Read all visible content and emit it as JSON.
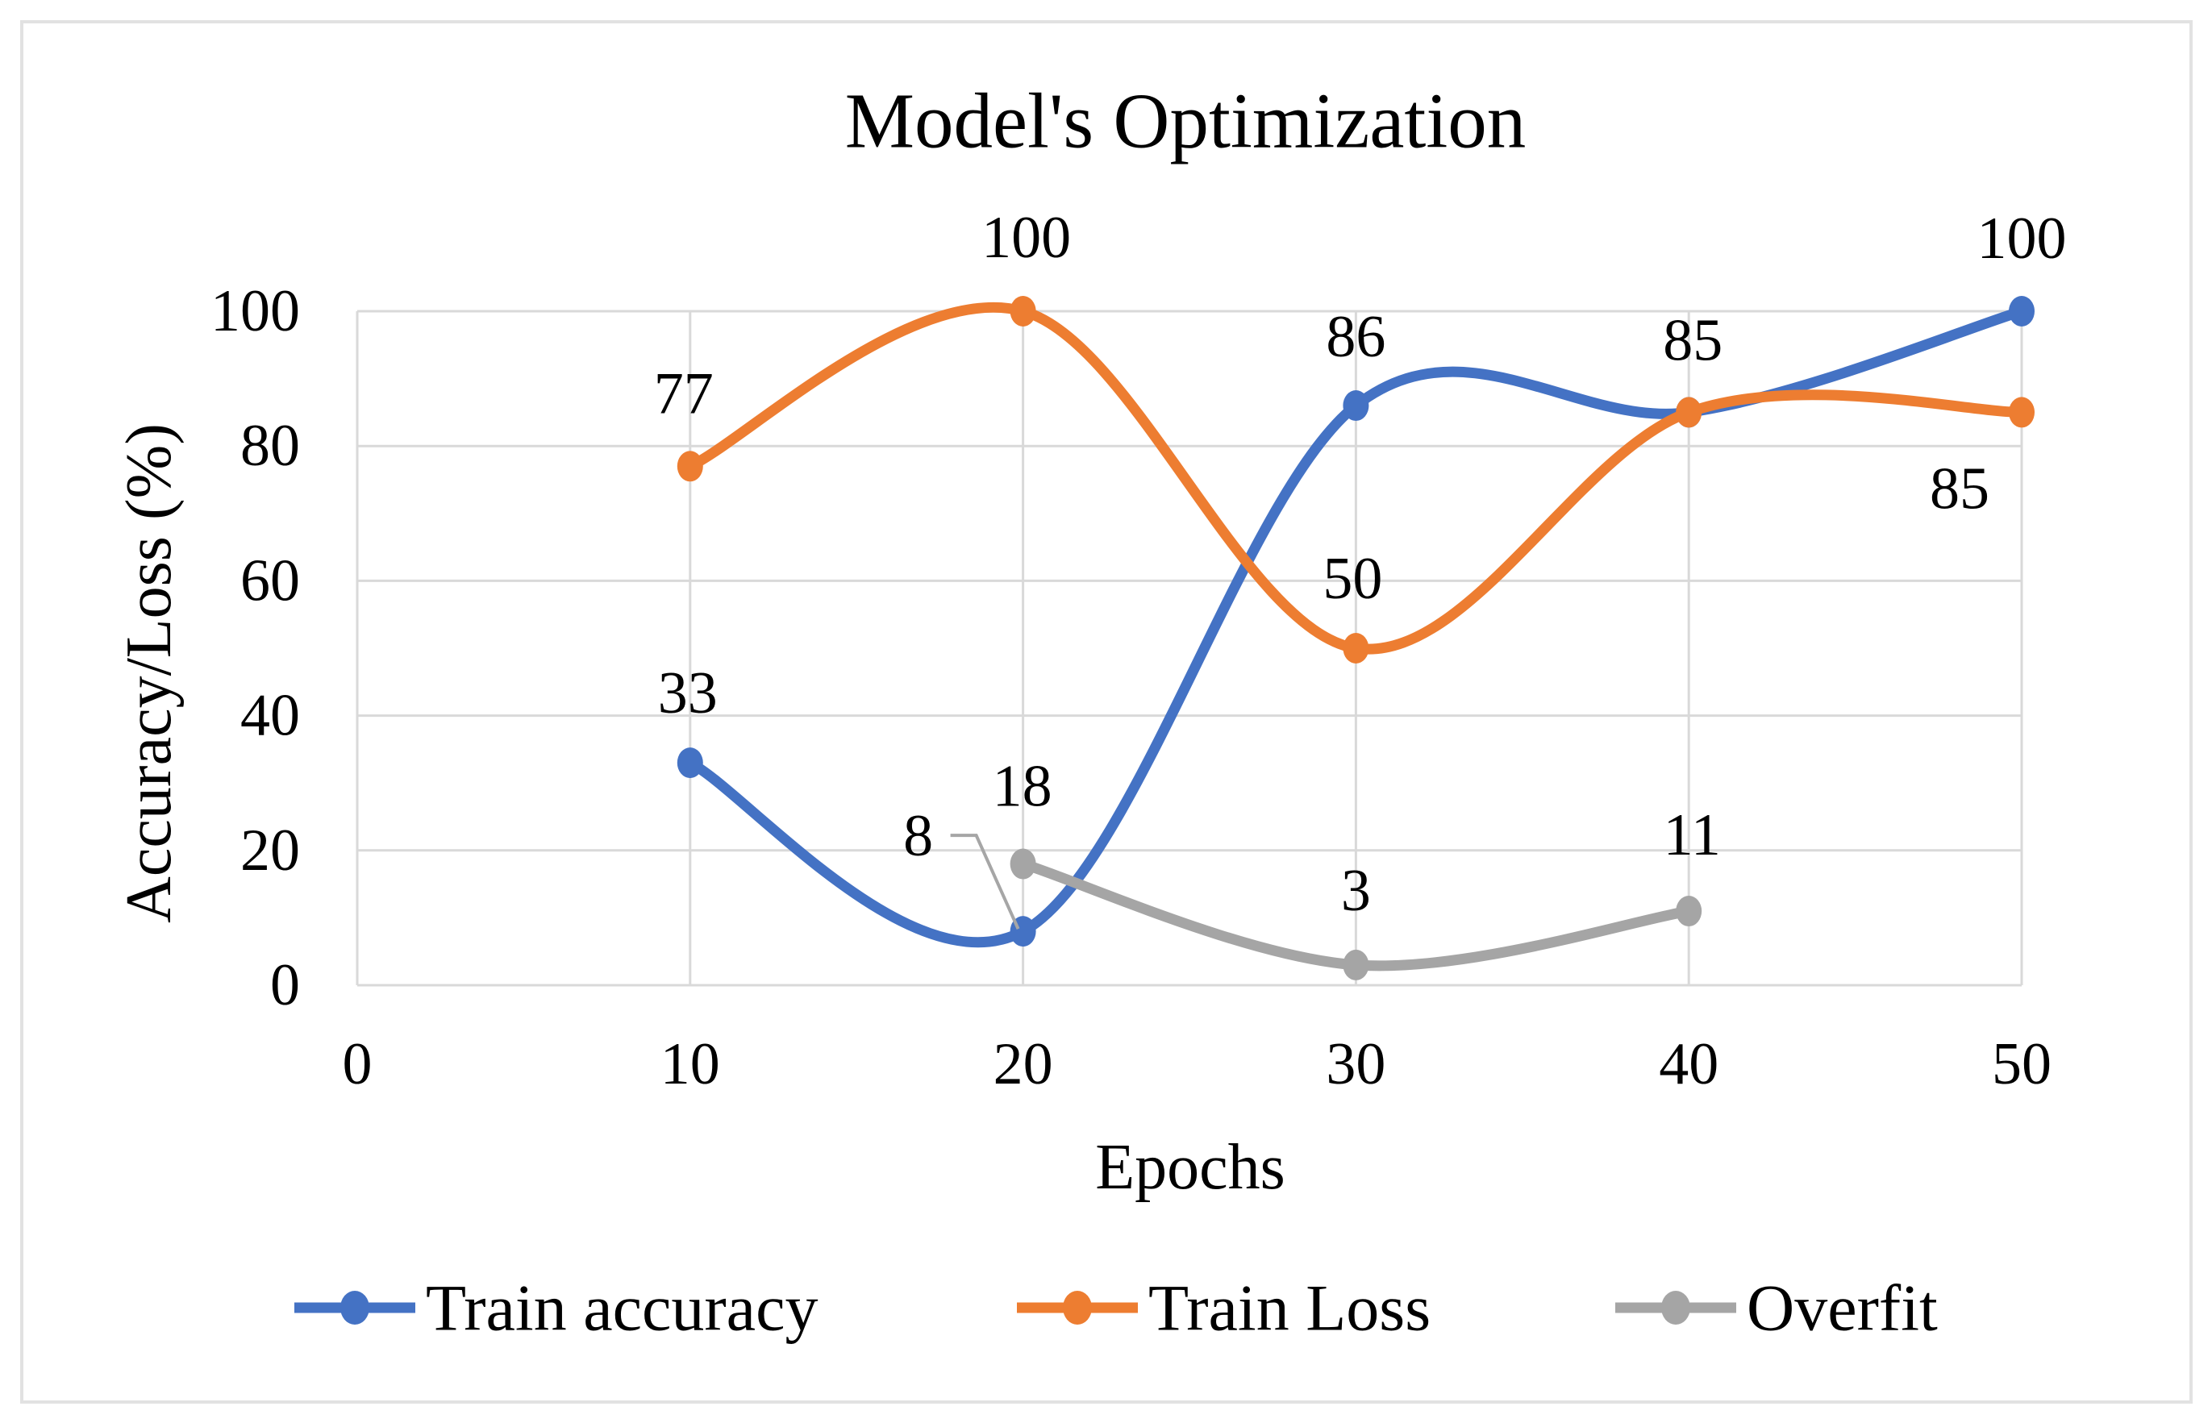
{
  "chart_data": {
    "type": "line",
    "title": "Model's Optimization",
    "xlabel": "Epochs",
    "ylabel": "Accuracy/Loss (%)",
    "x_ticks": [
      0,
      10,
      20,
      30,
      40,
      50
    ],
    "y_ticks": [
      0,
      20,
      40,
      60,
      80,
      100
    ],
    "xlim": [
      0,
      50
    ],
    "ylim": [
      0,
      100
    ],
    "grid": true,
    "smooth": true,
    "legend_position": "bottom",
    "colors": {
      "grid": "#D9D9D9",
      "frame": "#E2E2E2",
      "label_text": "#000000",
      "leader_line": "#A6A6A6"
    },
    "series": [
      {
        "name": "Train accuracy",
        "color": "#4472C4",
        "x": [
          10,
          20,
          30,
          40,
          50
        ],
        "values": [
          33,
          8,
          86,
          85,
          100
        ],
        "labels": [
          {
            "text": "33",
            "dx": -3,
            "dy": -86
          },
          {
            "text": "8",
            "dx": -130,
            "dy": -118,
            "leader": [
              [
                -90,
                -119
              ],
              [
                -58,
                -119
              ],
              [
                -6,
                -3
              ]
            ]
          },
          {
            "text": "86",
            "dx": 0,
            "dy": -85
          },
          null,
          {
            "text": "100",
            "dx": 0,
            "dy": -90
          }
        ]
      },
      {
        "name": "Train Loss",
        "color": "#ED7D31",
        "x": [
          10,
          20,
          30,
          40,
          50
        ],
        "values": [
          77,
          100,
          50,
          85,
          85
        ],
        "labels": [
          {
            "text": "77",
            "dx": -8,
            "dy": -90
          },
          {
            "text": "100",
            "dx": 4,
            "dy": -91
          },
          {
            "text": "50",
            "dx": -4,
            "dy": -86
          },
          {
            "text": "85",
            "dx": 5,
            "dy": -89
          },
          {
            "text": "85",
            "dx": -77,
            "dy": 95
          }
        ]
      },
      {
        "name": "Overfit",
        "color": "#A5A5A5",
        "x": [
          20,
          30,
          40
        ],
        "values": [
          18,
          3,
          11
        ],
        "labels": [
          {
            "text": "18",
            "dx": -1,
            "dy": -96
          },
          {
            "text": "3",
            "dx": 0,
            "dy": -92
          },
          {
            "text": "11",
            "dx": 4,
            "dy": -94
          }
        ]
      }
    ]
  }
}
